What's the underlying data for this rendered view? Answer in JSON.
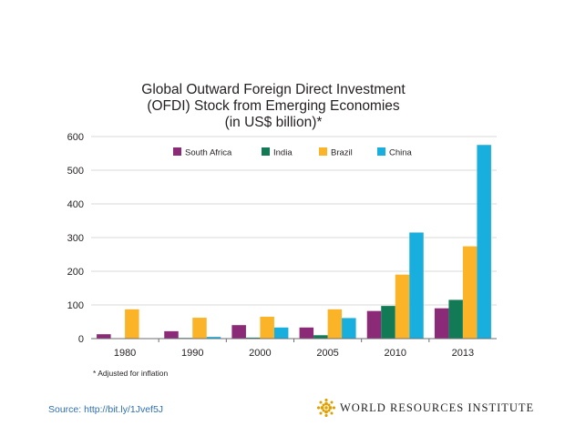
{
  "chart_data": {
    "type": "bar",
    "title_lines": [
      "Global Outward Foreign Direct Investment",
      "(OFDI) Stock from Emerging Economies",
      "(in US$ billion)*"
    ],
    "categories": [
      "1980",
      "1990",
      "2000",
      "2005",
      "2010",
      "2013"
    ],
    "series": [
      {
        "name": "South Africa",
        "color": "#8b2a77",
        "values": [
          13,
          22,
          40,
          33,
          82,
          90
        ]
      },
      {
        "name": "India",
        "color": "#127a55",
        "values": [
          0,
          2,
          3,
          10,
          97,
          115
        ]
      },
      {
        "name": "Brazil",
        "color": "#fbb428",
        "values": [
          87,
          62,
          65,
          87,
          190,
          274
        ]
      },
      {
        "name": "China",
        "color": "#18aede",
        "values": [
          0,
          5,
          33,
          61,
          315,
          575
        ]
      }
    ],
    "y_ticks": [
      0,
      100,
      200,
      300,
      400,
      500,
      600
    ],
    "ylim": [
      0,
      600
    ],
    "legend_position": "top",
    "grid": true
  },
  "footnote": "* Adjusted for inflation",
  "source": "Source: http://bit.ly/1Jvef5J",
  "brand": {
    "name": "WORLD RESOURCES INSTITUTE",
    "logo_icon": "wri-logo-icon",
    "logo_color": "#e0a100"
  }
}
